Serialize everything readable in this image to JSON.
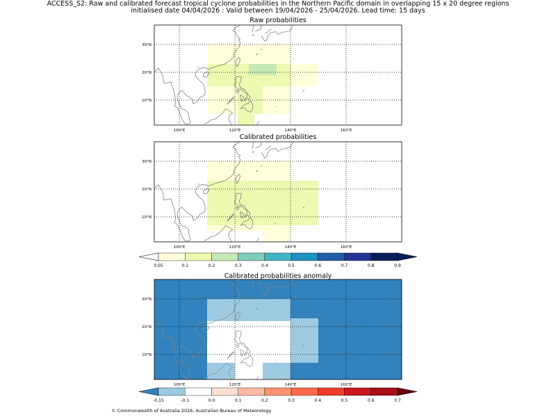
{
  "header": {
    "line1": "ACCESS_S2: Raw and calibrated forecast tropical cyclone probabilities in the Northern Pacific domain in overlapping 15 x 20 degree regions",
    "line2": "initialised date 04/04/2026 :  Valid between 19/04/2026 - 25/04/2026. Lead time: 15 days"
  },
  "axis": {
    "lon_labels": [
      "100°E",
      "120°E",
      "140°E",
      "160°E"
    ],
    "lat_labels": [
      "30°N",
      "20°N",
      "10°N"
    ],
    "lon_values": [
      100,
      120,
      140,
      160
    ],
    "lat_values": [
      30,
      20,
      10
    ],
    "extent": {
      "lon": [
        91,
        180
      ],
      "lat": [
        1,
        37
      ]
    }
  },
  "panels": [
    {
      "id": "raw",
      "title": "Raw probabilities",
      "background": "#ffffff",
      "cells": [
        {
          "lon": [
            110,
            140
          ],
          "lat": [
            5,
            30
          ],
          "color": "#ffffda"
        },
        {
          "lon": [
            140,
            150
          ],
          "lat": [
            15,
            23
          ],
          "color": "#ffffda"
        },
        {
          "lon": [
            110,
            140
          ],
          "lat": [
            15,
            23
          ],
          "color": "#edf8b1"
        },
        {
          "lon": [
            121,
            130
          ],
          "lat": [
            5,
            22
          ],
          "color": "#edf8b1"
        },
        {
          "lon": [
            121,
            127
          ],
          "lat": [
            1,
            8
          ],
          "color": "#edf8b1"
        },
        {
          "lon": [
            125,
            135
          ],
          "lat": [
            19,
            23
          ],
          "color": "#c7e9b4"
        }
      ]
    },
    {
      "id": "cal",
      "title": "Calibrated probabilities",
      "background": "#ffffff",
      "cells": [
        {
          "lon": [
            110,
            140
          ],
          "lat": [
            5,
            30
          ],
          "color": "#ffffda"
        },
        {
          "lon": [
            110,
            150
          ],
          "lat": [
            7,
            23
          ],
          "color": "#edf8b1"
        },
        {
          "lon": [
            130,
            140
          ],
          "lat": [
            1,
            7
          ],
          "color": "#ffffda"
        }
      ]
    },
    {
      "id": "anom",
      "title": "Calibrated probabilities anomaly",
      "background": "#3182bd",
      "cells": [
        {
          "lon": [
            110,
            140
          ],
          "lat": [
            1,
            30
          ],
          "color": "#9ecae1"
        },
        {
          "lon": [
            140,
            150
          ],
          "lat": [
            7,
            23
          ],
          "color": "#9ecae1"
        },
        {
          "lon": [
            110,
            140
          ],
          "lat": [
            7,
            22
          ],
          "color": "#ffffff"
        },
        {
          "lon": [
            130,
            140
          ],
          "lat": [
            1,
            7
          ],
          "color": "#9ecae1"
        },
        {
          "lon": [
            120,
            130
          ],
          "lat": [
            1,
            7
          ],
          "color": "#ffffff"
        }
      ]
    }
  ],
  "colorbar_prob": {
    "labels": [
      "0.05",
      "0.1",
      "0.2",
      "0.3",
      "0.4",
      "0.5",
      "0.6",
      "0.7",
      "0.8",
      "0.9"
    ],
    "colors": [
      "#ffffda",
      "#edf8b1",
      "#c7e9b4",
      "#7fcdbb",
      "#41b6c4",
      "#1d91c0",
      "#225ea8",
      "#253494",
      "#081d58"
    ],
    "under": "#ffffff",
    "over": "#081d58"
  },
  "colorbar_anom": {
    "labels": [
      "-0.15",
      "-0.1",
      "0.0",
      "0.1",
      "0.2",
      "0.3",
      "0.4",
      "0.5",
      "0.6",
      "0.7"
    ],
    "colors": [
      "#9ecae1",
      "#ffffff",
      "#fee0d2",
      "#fcbba1",
      "#fc9272",
      "#fb6a4a",
      "#ef3b2c",
      "#cb181d",
      "#a50f15"
    ],
    "under": "#3182bd",
    "over": "#67000d"
  },
  "footer": "© Commonwealth of Australia 2026, Australian Bureau of Meteorology"
}
